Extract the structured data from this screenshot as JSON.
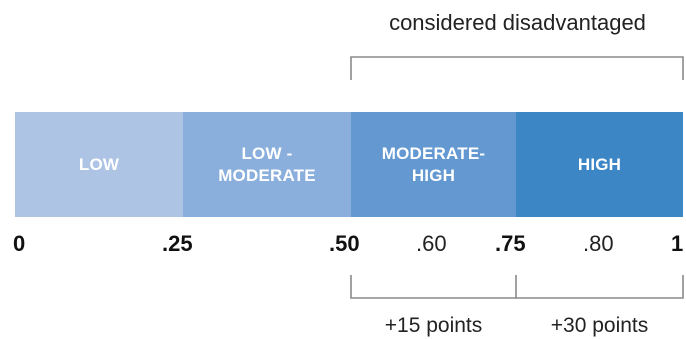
{
  "top_label": "considered disadvantaged",
  "segments": [
    {
      "line1": "LOW",
      "line2": "",
      "color": "#adc4e5"
    },
    {
      "line1": "LOW -",
      "line2": "MODERATE",
      "color": "#8bafdc"
    },
    {
      "line1": "MODERATE-",
      "line2": "HIGH",
      "color": "#6498d1"
    },
    {
      "line1": "HIGH",
      "line2": "",
      "color": "#3d86c6"
    }
  ],
  "ticks": [
    {
      "label": "0",
      "value": 0,
      "major": true
    },
    {
      "label": ".25",
      "value": 0.25,
      "major": true
    },
    {
      "label": ".50",
      "value": 0.5,
      "major": true
    },
    {
      "label": ".60",
      "value": 0.6,
      "major": false
    },
    {
      "label": ".75",
      "value": 0.75,
      "major": true
    },
    {
      "label": ".80",
      "value": 0.8,
      "major": false
    },
    {
      "label": "1",
      "value": 1,
      "major": true
    }
  ],
  "bottom_labels": [
    {
      "text": "+15 points",
      "from": 0.5,
      "to": 0.75
    },
    {
      "text": "+30 points",
      "from": 0.75,
      "to": 1
    }
  ],
  "colors": {
    "bracket": "#8a8a8a",
    "text": "#222222"
  }
}
